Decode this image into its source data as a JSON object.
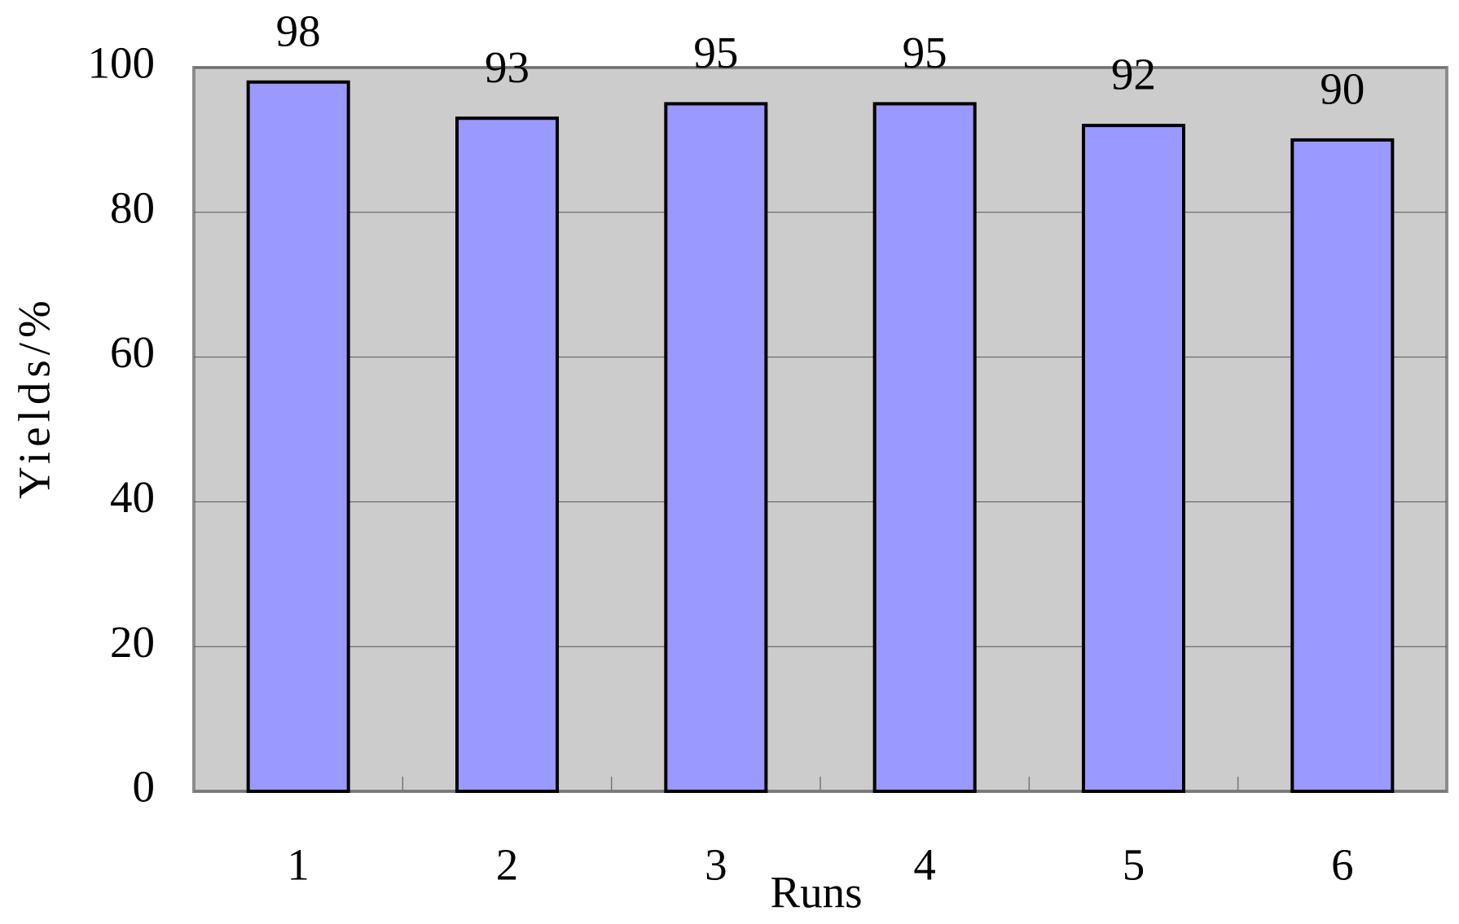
{
  "chart_data": {
    "type": "bar",
    "x_label": "Runs",
    "y_label": "Yields/%",
    "categories": [
      "1",
      "2",
      "3",
      "4",
      "5",
      "6"
    ],
    "values": [
      98,
      93,
      95,
      95,
      92,
      90
    ],
    "color": "#9999ff",
    "ylim": [
      0,
      100
    ],
    "yticks": [
      0,
      20,
      40,
      60,
      80,
      100
    ],
    "grid": true
  }
}
